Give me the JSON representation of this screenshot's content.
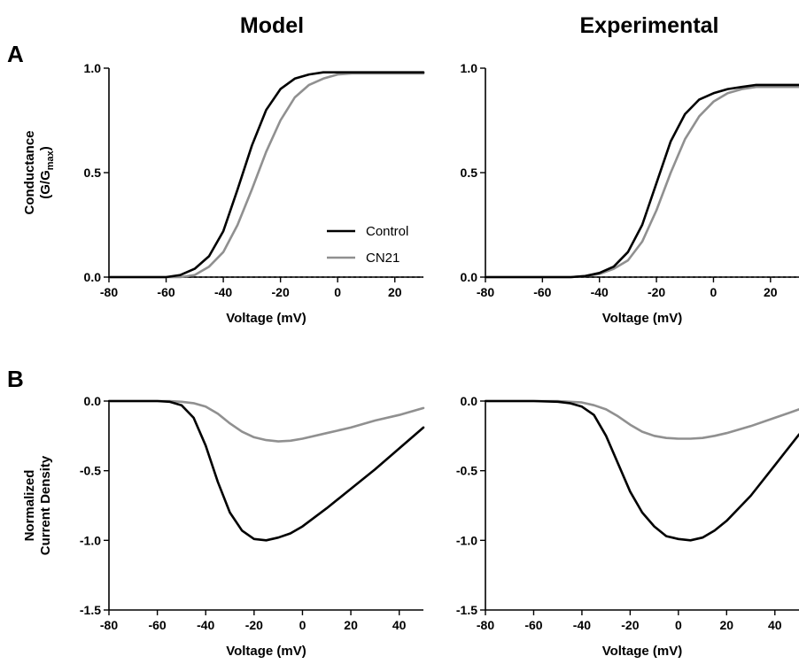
{
  "figure": {
    "column_titles": [
      "Model",
      "Experimental"
    ],
    "panel_letters": [
      "A",
      "B"
    ]
  },
  "colors": {
    "control": "#000000",
    "cn21": "#909090"
  },
  "legend": {
    "entries": [
      "Control",
      "CN21"
    ],
    "panel_index": 0,
    "placement": "lower-right"
  },
  "chart_data": [
    {
      "type": "line",
      "xlabel": "Voltage (mV)",
      "ylabel": [
        "Conductance",
        "(G/G",
        "max",
        ")"
      ],
      "xlim": [
        -80,
        30
      ],
      "ylim": [
        0,
        1
      ],
      "xticks": [
        -80,
        -60,
        -40,
        -20,
        0,
        20
      ],
      "yticks": [
        0,
        0.5,
        1
      ],
      "ytick_labels": [
        "0.0",
        "0.5",
        "1.0"
      ],
      "zero_line": "dashed",
      "series": [
        {
          "name": "Control",
          "color_key": "control",
          "x": [
            -80,
            -70,
            -60,
            -55,
            -50,
            -45,
            -40,
            -35,
            -30,
            -25,
            -20,
            -15,
            -10,
            -5,
            0,
            5,
            10,
            20,
            30
          ],
          "y": [
            0,
            0,
            0,
            0.01,
            0.04,
            0.1,
            0.22,
            0.42,
            0.63,
            0.8,
            0.9,
            0.95,
            0.97,
            0.98,
            0.98,
            0.98,
            0.98,
            0.98,
            0.98
          ]
        },
        {
          "name": "CN21",
          "color_key": "cn21",
          "x": [
            -80,
            -70,
            -60,
            -55,
            -50,
            -45,
            -40,
            -35,
            -30,
            -25,
            -20,
            -15,
            -10,
            -5,
            0,
            5,
            10,
            20,
            30
          ],
          "y": [
            0,
            0,
            0,
            0,
            0.01,
            0.05,
            0.12,
            0.25,
            0.42,
            0.6,
            0.75,
            0.86,
            0.92,
            0.95,
            0.97,
            0.975,
            0.975,
            0.975,
            0.975
          ]
        }
      ]
    },
    {
      "type": "line",
      "xlabel": "Voltage (mV)",
      "ylabel": [],
      "xlim": [
        -80,
        30
      ],
      "ylim": [
        0,
        1
      ],
      "xticks": [
        -80,
        -60,
        -40,
        -20,
        0,
        20
      ],
      "yticks": [
        0,
        0.5,
        1
      ],
      "ytick_labels": [
        "0.0",
        "0.5",
        "1.0"
      ],
      "zero_line": "dashed",
      "series": [
        {
          "name": "Control",
          "color_key": "control",
          "x": [
            -80,
            -70,
            -60,
            -50,
            -45,
            -40,
            -35,
            -30,
            -25,
            -20,
            -15,
            -10,
            -5,
            0,
            5,
            10,
            15,
            20,
            30
          ],
          "y": [
            0,
            0,
            0,
            0,
            0.005,
            0.02,
            0.05,
            0.12,
            0.25,
            0.45,
            0.65,
            0.78,
            0.85,
            0.88,
            0.9,
            0.91,
            0.92,
            0.92,
            0.92
          ]
        },
        {
          "name": "CN21",
          "color_key": "cn21",
          "x": [
            -80,
            -70,
            -60,
            -50,
            -45,
            -40,
            -35,
            -30,
            -25,
            -20,
            -15,
            -10,
            -5,
            0,
            5,
            10,
            15,
            20,
            30
          ],
          "y": [
            0,
            0,
            0,
            0,
            0.005,
            0.015,
            0.04,
            0.08,
            0.17,
            0.32,
            0.5,
            0.66,
            0.77,
            0.84,
            0.88,
            0.9,
            0.91,
            0.91,
            0.91
          ]
        }
      ]
    },
    {
      "type": "line",
      "xlabel": "Voltage (mV)",
      "ylabel": [
        "Normalized",
        "Current  Density"
      ],
      "xlim": [
        -80,
        50
      ],
      "ylim": [
        -1.5,
        0
      ],
      "xticks": [
        -80,
        -60,
        -40,
        -20,
        0,
        20,
        40
      ],
      "yticks": [
        0,
        -0.5,
        -1,
        -1.5
      ],
      "ytick_labels": [
        "0.0",
        "-0.5",
        "-1.0",
        "-1.5"
      ],
      "zero_line": "none",
      "series": [
        {
          "name": "Control",
          "color_key": "control",
          "x": [
            -80,
            -70,
            -60,
            -55,
            -50,
            -45,
            -40,
            -35,
            -30,
            -25,
            -20,
            -15,
            -10,
            -5,
            0,
            10,
            20,
            30,
            40,
            50
          ],
          "y": [
            0,
            0,
            0,
            -0.005,
            -0.03,
            -0.12,
            -0.32,
            -0.58,
            -0.8,
            -0.93,
            -0.99,
            -1.0,
            -0.98,
            -0.95,
            -0.9,
            -0.77,
            -0.63,
            -0.49,
            -0.34,
            -0.19
          ]
        },
        {
          "name": "CN21",
          "color_key": "cn21",
          "x": [
            -80,
            -70,
            -60,
            -55,
            -50,
            -45,
            -40,
            -35,
            -30,
            -25,
            -20,
            -15,
            -10,
            -5,
            0,
            10,
            20,
            30,
            40,
            50
          ],
          "y": [
            0,
            0,
            0,
            0,
            -0.005,
            -0.015,
            -0.04,
            -0.09,
            -0.16,
            -0.22,
            -0.26,
            -0.28,
            -0.29,
            -0.285,
            -0.27,
            -0.23,
            -0.19,
            -0.14,
            -0.1,
            -0.05
          ]
        }
      ]
    },
    {
      "type": "line",
      "xlabel": "Voltage (mV)",
      "ylabel": [],
      "xlim": [
        -80,
        50
      ],
      "ylim": [
        -1.5,
        0
      ],
      "xticks": [
        -80,
        -60,
        -40,
        -20,
        0,
        20,
        40
      ],
      "yticks": [
        0,
        -0.5,
        -1,
        -1.5
      ],
      "ytick_labels": [
        "0.0",
        "-0.5",
        "-1.0",
        "-1.5"
      ],
      "zero_line": "none",
      "series": [
        {
          "name": "Control",
          "color_key": "control",
          "x": [
            -80,
            -70,
            -60,
            -50,
            -45,
            -40,
            -35,
            -30,
            -25,
            -20,
            -15,
            -10,
            -5,
            0,
            5,
            10,
            15,
            20,
            30,
            40,
            50
          ],
          "y": [
            0,
            0,
            0,
            -0.005,
            -0.015,
            -0.04,
            -0.1,
            -0.25,
            -0.45,
            -0.65,
            -0.8,
            -0.9,
            -0.97,
            -0.99,
            -1.0,
            -0.98,
            -0.93,
            -0.86,
            -0.68,
            -0.46,
            -0.24
          ]
        },
        {
          "name": "CN21",
          "color_key": "cn21",
          "x": [
            -80,
            -70,
            -60,
            -50,
            -45,
            -40,
            -35,
            -30,
            -25,
            -20,
            -15,
            -10,
            -5,
            0,
            5,
            10,
            15,
            20,
            30,
            40,
            50
          ],
          "y": [
            0,
            0,
            0,
            0,
            -0.005,
            -0.01,
            -0.03,
            -0.06,
            -0.11,
            -0.17,
            -0.22,
            -0.25,
            -0.265,
            -0.27,
            -0.27,
            -0.265,
            -0.25,
            -0.23,
            -0.18,
            -0.12,
            -0.06
          ]
        }
      ]
    }
  ]
}
